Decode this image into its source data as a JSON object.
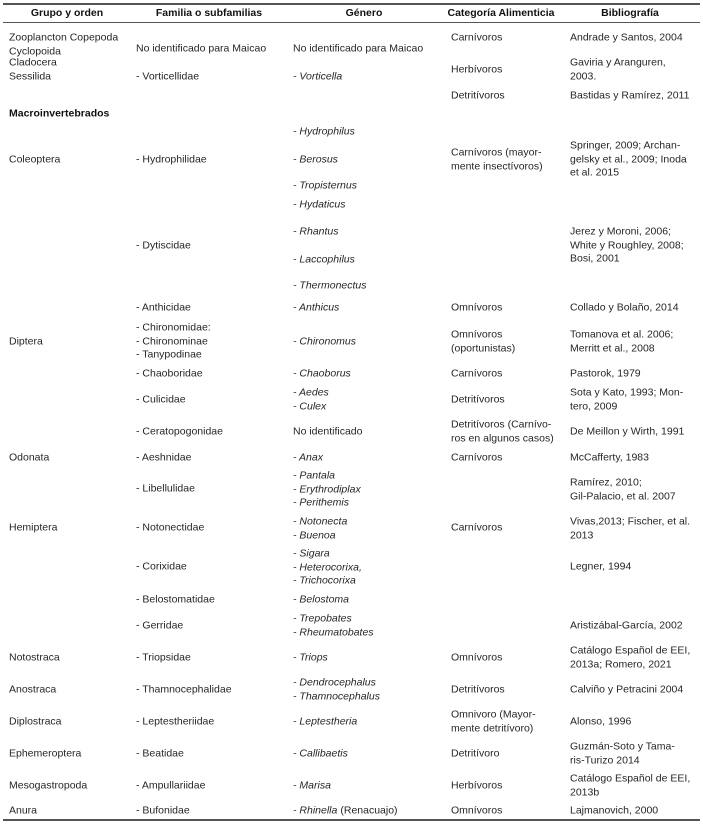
{
  "headers": [
    "Grupo y orden",
    "Familia o subfamilias",
    "Género",
    "Categoría Alimenticia",
    "Bibliografía"
  ],
  "section_label": "Macroinvertebrados",
  "rows": [
    {
      "group": [
        "Zooplancton Copepoda",
        "Cyclopoida"
      ],
      "family": [
        "No identificado para Maicao"
      ],
      "genus": [
        "No identificado para Maicao"
      ],
      "category": [
        "Carnívoros"
      ],
      "bibliography": [
        "Andrade y Santos, 2004"
      ]
    },
    {
      "group": [
        "Cladocera",
        "Sessilida"
      ],
      "family": [
        "- Vorticellidae"
      ],
      "genus": [
        "- Vorticella"
      ],
      "category": [
        "Herbívoros"
      ],
      "bibliography": [
        "Gaviria y Aranguren,",
        "2003."
      ]
    },
    {
      "group": [],
      "family": [],
      "genus": [],
      "category": [
        "Detritívoros"
      ],
      "bibliography": [
        "Bastidas y Ramírez, 2011"
      ]
    },
    {
      "group": [
        "Coleoptera"
      ],
      "family": [
        "- Hydrophilidae"
      ],
      "genus": [
        "- Hydrophilus",
        "- Berosus",
        "- Tropisternus",
        "- Hydaticus"
      ],
      "category": [
        "Carnívoros (mayor-",
        "mente insectívoros)"
      ],
      "bibliography": [
        "Springer, 2009; Archan-",
        "gelsky et al., 2009; Inoda",
        "et al. 2015"
      ]
    },
    {
      "group": [],
      "family": [
        "- Dytiscidae"
      ],
      "genus": [
        "- Rhantus",
        "- Laccophilus",
        "- Thermonectus"
      ],
      "category": [],
      "bibliography": [
        "Jerez y Moroni, 2006;",
        "White y Roughley, 2008;",
        "Bosi, 2001"
      ]
    },
    {
      "group": [],
      "family": [
        "- Anthicidae"
      ],
      "genus": [
        "- Anthicus"
      ],
      "category": [
        "Omnívoros"
      ],
      "bibliography": [
        "Collado y Bolaño, 2014"
      ]
    },
    {
      "group": [
        "Diptera"
      ],
      "family": [
        "- Chironomidae:",
        " - Chironominae",
        " - Tanypodinae"
      ],
      "genus": [
        "- Chironomus"
      ],
      "category": [
        "Omnívoros",
        "(oportunistas)"
      ],
      "bibliography": [
        "Tomanova et al. 2006;",
        "Merritt et al., 2008"
      ]
    },
    {
      "group": [],
      "family": [
        "- Chaoboridae"
      ],
      "genus": [
        "- Chaoborus"
      ],
      "category": [
        "Carnívoros"
      ],
      "bibliography": [
        "Pastorok, 1979"
      ]
    },
    {
      "group": [],
      "family": [
        "- Culicidae"
      ],
      "genus": [
        "- Aedes",
        "- Culex"
      ],
      "category": [
        "Detritívoros"
      ],
      "bibliography": [
        "Sota y Kato, 1993; Mon-",
        "tero, 2009"
      ]
    },
    {
      "group": [],
      "family": [
        "- Ceratopogonidae"
      ],
      "genus": [
        "No identificado"
      ],
      "category": [
        "Detritívoros (Carnívo-",
        "ros en algunos casos)"
      ],
      "bibliography": [
        "De Meillon y Wirth, 1991"
      ]
    },
    {
      "group": [
        "Odonata"
      ],
      "family": [
        "- Aeshnidae"
      ],
      "genus": [
        "- Anax"
      ],
      "category": [
        "Carnívoros"
      ],
      "bibliography": [
        "McCafferty, 1983"
      ]
    },
    {
      "group": [],
      "family": [
        "- Libellulidae"
      ],
      "genus": [
        "- Pantala",
        "- Erythrodiplax",
        "- Perithemis"
      ],
      "category": [],
      "bibliography": [
        "Ramírez, 2010;",
        "Gil-Palacio, et al. 2007"
      ]
    },
    {
      "group": [
        "Hemiptera"
      ],
      "family": [
        "- Notonectidae"
      ],
      "genus": [
        "- Notonecta",
        "- Buenoa"
      ],
      "category": [
        "Carnívoros"
      ],
      "bibliography": [
        "Vivas,2013; Fischer, et al.",
        "2013"
      ]
    },
    {
      "group": [],
      "family": [
        "- Corixidae"
      ],
      "genus": [
        "- Sigara",
        "- Heterocorixa,",
        "- Trichocorixa"
      ],
      "category": [],
      "bibliography": [
        "Legner, 1994"
      ]
    },
    {
      "group": [],
      "family": [
        "- Belostomatidae"
      ],
      "genus": [
        "- Belostoma"
      ],
      "category": [],
      "bibliography": []
    },
    {
      "group": [],
      "family": [
        "- Gerridae"
      ],
      "genus": [
        "- Trepobates",
        "- Rheumatobates"
      ],
      "category": [],
      "bibliography": [
        "Aristizábal-García, 2002"
      ]
    },
    {
      "group": [
        "Notostraca"
      ],
      "family": [
        "- Triopsidae"
      ],
      "genus": [
        "- Triops"
      ],
      "category": [
        "Omnívoros"
      ],
      "bibliography": [
        "Catálogo Español de EEI,",
        "2013a; Romero, 2021"
      ]
    },
    {
      "group": [
        "Anostraca"
      ],
      "family": [
        "- Thamnocephalidae"
      ],
      "genus": [
        "- Dendrocephalus",
        "- Thamnocephalus"
      ],
      "category": [
        "Detritívoros"
      ],
      "bibliography": [
        "Calviño y Petracini 2004"
      ]
    },
    {
      "group": [
        "Diplostraca"
      ],
      "family": [
        "- Leptestheriidae"
      ],
      "genus": [
        "- Leptestheria"
      ],
      "category": [
        "Omnivoro (Mayor-",
        "mente detritívoro)"
      ],
      "bibliography": [
        "Alonso, 1996"
      ]
    },
    {
      "group": [
        "Ephemeroptera"
      ],
      "family": [
        "- Beatidae"
      ],
      "genus": [
        "- Callibaetis"
      ],
      "category": [
        "Detritívoro"
      ],
      "bibliography": [
        "Guzmán-Soto y Tama-",
        "ris-Turizo 2014"
      ]
    },
    {
      "group": [
        "Mesogastropoda"
      ],
      "family": [
        "- Ampullariidae"
      ],
      "genus": [
        "- Marisa"
      ],
      "category": [
        "Herbívoros"
      ],
      "bibliography": [
        "Catálogo Español de EEI,",
        "2013b"
      ]
    },
    {
      "group": [
        "Anura"
      ],
      "family": [
        "- Bufonidae"
      ],
      "genus": [
        "- Rhinella"
      ],
      "genus_note": "(Renacuajo)",
      "category": [
        "Omnívoros"
      ],
      "bibliography": [
        "Lajmanovich, 2000"
      ]
    }
  ]
}
